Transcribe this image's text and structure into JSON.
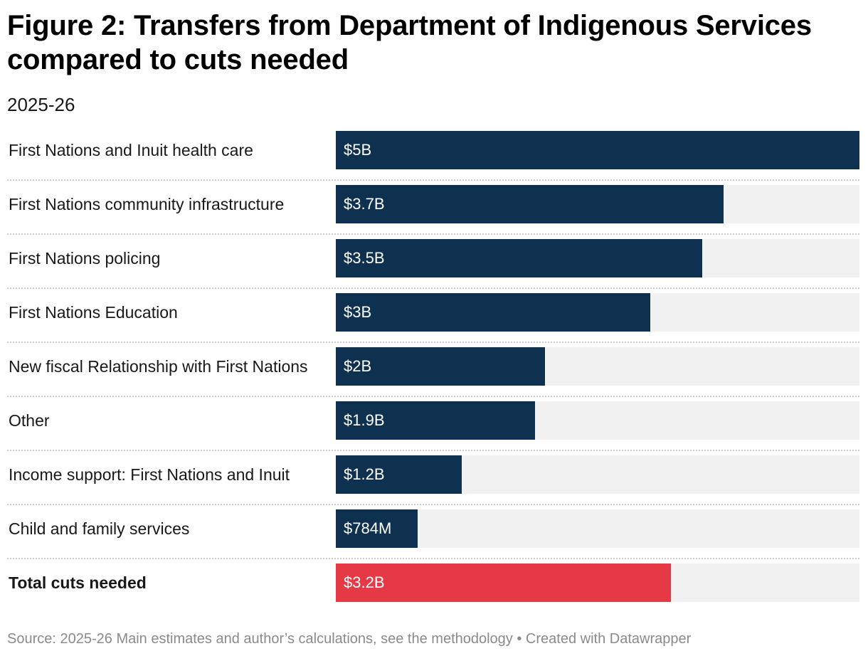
{
  "header": {
    "title": "Figure 2: Transfers from Department of Indigenous Services compared to cuts needed",
    "subtitle": "2025-26"
  },
  "footer": {
    "source": "Source: 2025-26 Main estimates and author’s calculations, see the methodology • Created with Datawrapper"
  },
  "colors": {
    "bar": "#0f3150",
    "highlight": "#e63946",
    "track": "#f1f1f1"
  },
  "chart_data": {
    "type": "bar",
    "orientation": "horizontal",
    "title": "Figure 2: Transfers from Department of Indigenous Services compared to cuts needed",
    "subtitle": "2025-26",
    "xlabel": "",
    "ylabel": "",
    "xlim": [
      0,
      5
    ],
    "unit": "billion CAD",
    "grid": false,
    "categories": [
      "First Nations and Inuit health care",
      "First Nations community infrastructure",
      "First Nations policing",
      "First Nations Education",
      "New fiscal Relationship with First Nations",
      "Other",
      "Income support: First Nations and Inuit",
      "Child and family services",
      "Total cuts needed"
    ],
    "values": [
      5,
      3.7,
      3.5,
      3,
      2,
      1.9,
      1.2,
      0.784,
      3.2
    ],
    "value_labels": [
      "$5B",
      "$3.7B",
      "$3.5B",
      "$3B",
      "$2B",
      "$1.9B",
      "$1.2B",
      "$784M",
      "$3.2B"
    ],
    "highlight": [
      false,
      false,
      false,
      false,
      false,
      false,
      false,
      false,
      true
    ],
    "bold_labels": [
      false,
      false,
      false,
      false,
      false,
      false,
      false,
      false,
      true
    ]
  }
}
